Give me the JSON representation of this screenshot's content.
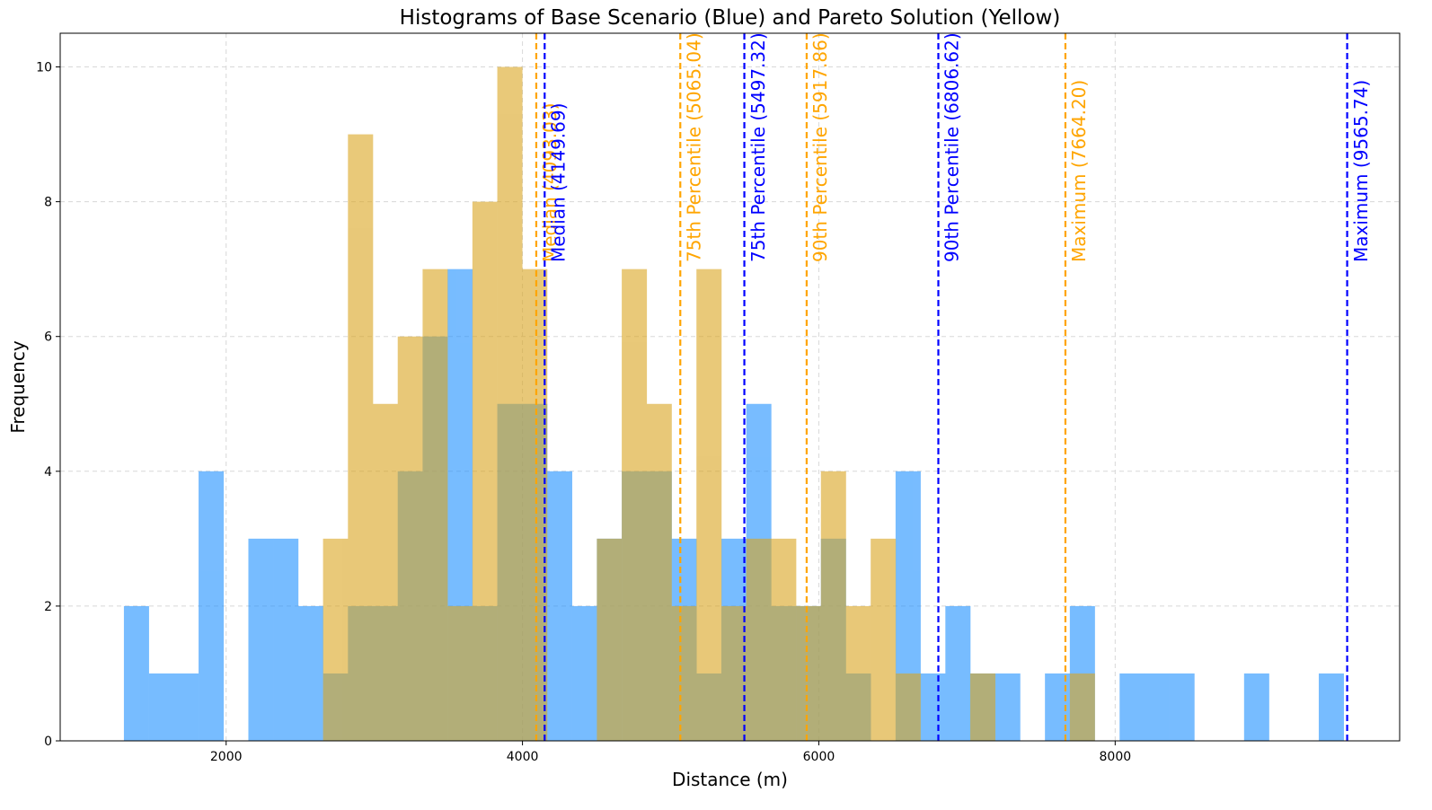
{
  "chart_data": {
    "type": "bar",
    "title": "Histograms of Base Scenario (Blue) and Pareto Solution (Yellow)",
    "xlabel": "Distance (m)",
    "ylabel": "Frequency",
    "xlim": [
      880,
      9920
    ],
    "ylim": [
      0,
      10.5
    ],
    "xticks": [
      2000,
      4000,
      6000,
      8000
    ],
    "yticks": [
      0,
      2,
      4,
      6,
      8,
      10
    ],
    "grid": true,
    "bin_edges": [
      1310,
      1478,
      1646,
      1814,
      1982,
      2150,
      2318,
      2486,
      2654,
      2822,
      2990,
      3158,
      3326,
      3494,
      3662,
      3830,
      3998,
      4166,
      4334,
      4502,
      4670,
      4838,
      5006,
      5174,
      5342,
      5510,
      5678,
      5846,
      6014,
      6182,
      6350,
      6518,
      6686,
      6854,
      7022,
      7190,
      7358,
      7526,
      7694,
      7862,
      8030,
      8198,
      8366,
      8534,
      8702,
      8870,
      9038,
      9206,
      9374,
      9542
    ],
    "series": [
      {
        "color": "#1E90FF",
        "values": [
          2,
          1,
          1,
          4,
          0,
          3,
          3,
          2,
          1,
          2,
          2,
          4,
          6,
          7,
          2,
          5,
          5,
          4,
          2,
          3,
          4,
          4,
          3,
          1,
          3,
          5,
          2,
          2,
          3,
          1,
          0,
          4,
          1,
          2,
          1,
          1,
          0,
          1,
          2,
          0,
          1,
          1,
          1,
          0,
          0,
          1,
          0,
          0,
          1
        ]
      },
      {
        "color": "#DAA520",
        "values": [
          0,
          0,
          0,
          0,
          0,
          0,
          0,
          0,
          3,
          9,
          5,
          6,
          7,
          2,
          8,
          10,
          7,
          0,
          0,
          3,
          7,
          5,
          2,
          7,
          2,
          3,
          3,
          2,
          4,
          2,
          3,
          1,
          0,
          0,
          1,
          0,
          0,
          0,
          1,
          0,
          0,
          0,
          0,
          0,
          0,
          0,
          0,
          0,
          0
        ]
      }
    ],
    "reference_lines": [
      {
        "x": 4093.03,
        "color": "#FFA500",
        "label": "Median (4093.03)"
      },
      {
        "x": 4149.69,
        "color": "#0000FF",
        "label": "Median (4149.69)"
      },
      {
        "x": 5065.04,
        "color": "#FFA500",
        "label": "75th Percentile (5065.04)"
      },
      {
        "x": 5497.32,
        "color": "#0000FF",
        "label": "75th Percentile (5497.32)"
      },
      {
        "x": 5917.86,
        "color": "#FFA500",
        "label": "90th Percentile (5917.86)"
      },
      {
        "x": 6806.62,
        "color": "#0000FF",
        "label": "90th Percentile (6806.62)"
      },
      {
        "x": 7664.2,
        "color": "#FFA500",
        "label": "Maximum (7664.20)"
      },
      {
        "x": 9565.74,
        "color": "#0000FF",
        "label": "Maximum (9565.74)"
      }
    ]
  }
}
